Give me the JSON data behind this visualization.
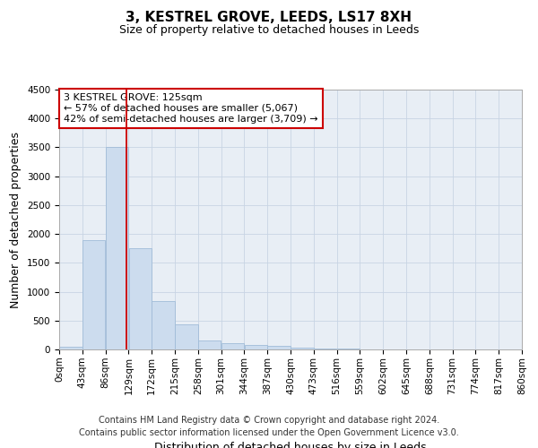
{
  "title": "3, KESTREL GROVE, LEEDS, LS17 8XH",
  "subtitle": "Size of property relative to detached houses in Leeds",
  "xlabel": "Distribution of detached houses by size in Leeds",
  "ylabel": "Number of detached properties",
  "bar_color": "#ccdcee",
  "bar_edge_color": "#a0bcd8",
  "vline_x": 125,
  "vline_color": "#cc0000",
  "annotation_title": "3 KESTREL GROVE: 125sqm",
  "annotation_line1": "← 57% of detached houses are smaller (5,067)",
  "annotation_line2": "42% of semi-detached houses are larger (3,709) →",
  "annotation_box_color": "#cc0000",
  "ylim": [
    0,
    4500
  ],
  "yticks": [
    0,
    500,
    1000,
    1500,
    2000,
    2500,
    3000,
    3500,
    4000,
    4500
  ],
  "bin_edges": [
    0,
    43,
    86,
    129,
    172,
    215,
    258,
    301,
    344,
    387,
    430,
    473,
    516,
    559,
    602,
    645,
    688,
    731,
    774,
    817,
    860
  ],
  "bar_heights": [
    50,
    1900,
    3500,
    1750,
    840,
    430,
    160,
    110,
    80,
    55,
    30,
    20,
    10,
    5,
    3,
    2,
    1,
    1,
    0,
    0
  ],
  "footer_line1": "Contains HM Land Registry data © Crown copyright and database right 2024.",
  "footer_line2": "Contains public sector information licensed under the Open Government Licence v3.0.",
  "background_color": "#ffffff",
  "plot_bg_color": "#e8eef5",
  "grid_color": "#c8d4e4",
  "title_fontsize": 11,
  "subtitle_fontsize": 9,
  "axis_label_fontsize": 9,
  "tick_fontsize": 7.5,
  "footer_fontsize": 7,
  "annotation_fontsize": 8
}
